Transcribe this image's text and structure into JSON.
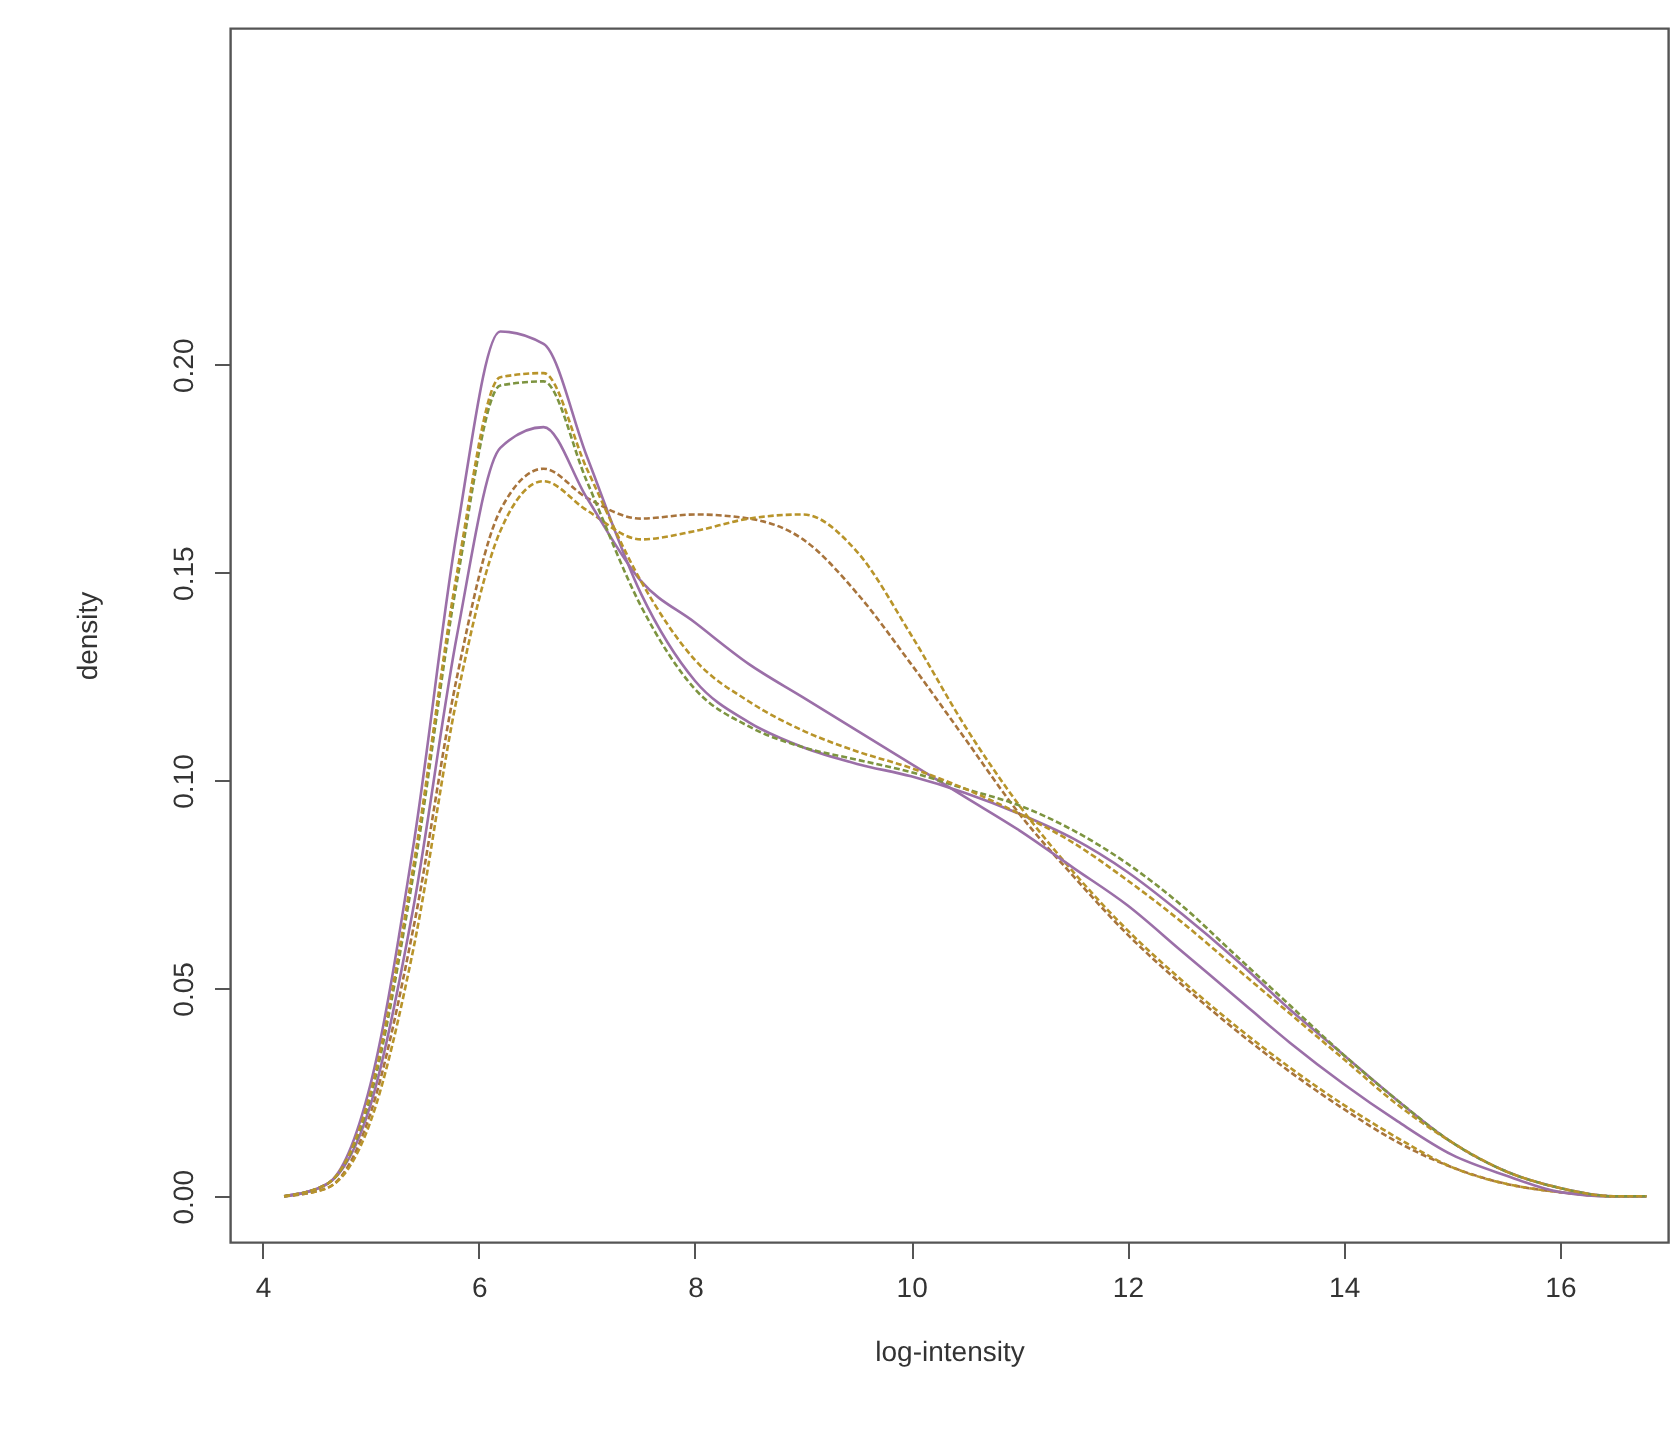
{
  "chart_data": {
    "type": "line",
    "xlabel": "log-intensity",
    "ylabel": "density",
    "x": [
      4.2,
      4.6,
      5.0,
      5.4,
      5.8,
      6.2,
      6.6,
      7.0,
      7.5,
      8,
      8.5,
      9,
      9.5,
      10,
      10.5,
      11,
      11.5,
      12,
      12.5,
      13,
      13.5,
      14,
      14.5,
      15,
      15.5,
      16,
      16.5,
      16.8
    ],
    "series": [
      {
        "color": "#9b6fa8",
        "line_style": "solid",
        "values": [
          0,
          0.003,
          0.027,
          0.085,
          0.16,
          0.208,
          0.205,
          0.178,
          0.145,
          0.124,
          0.114,
          0.108,
          0.104,
          0.101,
          0.097,
          0.092,
          0.086,
          0.078,
          0.068,
          0.057,
          0.045,
          0.034,
          0.023,
          0.013,
          0.006,
          0.002,
          0,
          0
        ]
      },
      {
        "color": "#a8743c",
        "values": [
          0,
          0.002,
          0.02,
          0.065,
          0.125,
          0.165,
          0.175,
          0.168,
          0.163,
          0.164,
          0.163,
          0.158,
          0.145,
          0.128,
          0.11,
          0.092,
          0.077,
          0.063,
          0.051,
          0.04,
          0.03,
          0.021,
          0.013,
          0.007,
          0.003,
          0.001,
          0,
          0
        ]
      },
      {
        "color": "#b8942a",
        "values": [
          0,
          0.002,
          0.018,
          0.06,
          0.12,
          0.16,
          0.172,
          0.165,
          0.158,
          0.16,
          0.163,
          0.164,
          0.155,
          0.135,
          0.113,
          0.094,
          0.078,
          0.064,
          0.052,
          0.041,
          0.031,
          0.022,
          0.014,
          0.007,
          0.003,
          0.001,
          0,
          0
        ]
      },
      {
        "color": "#9b6fa8",
        "line_style": "solid",
        "values": [
          0,
          0.003,
          0.022,
          0.07,
          0.135,
          0.18,
          0.185,
          0.168,
          0.148,
          0.138,
          0.128,
          0.12,
          0.112,
          0.104,
          0.096,
          0.088,
          0.079,
          0.07,
          0.059,
          0.048,
          0.037,
          0.027,
          0.018,
          0.01,
          0.005,
          0.001,
          0,
          0
        ]
      },
      {
        "color": "#7d9440",
        "values": [
          0,
          0.003,
          0.024,
          0.078,
          0.148,
          0.195,
          0.196,
          0.172,
          0.142,
          0.122,
          0.113,
          0.108,
          0.105,
          0.102,
          0.098,
          0.094,
          0.088,
          0.08,
          0.07,
          0.058,
          0.046,
          0.034,
          0.023,
          0.013,
          0.006,
          0.002,
          0,
          0
        ]
      },
      {
        "color": "#b8942a",
        "values": [
          0,
          0.003,
          0.025,
          0.08,
          0.15,
          0.197,
          0.198,
          0.175,
          0.148,
          0.129,
          0.119,
          0.112,
          0.107,
          0.103,
          0.098,
          0.092,
          0.085,
          0.076,
          0.066,
          0.055,
          0.044,
          0.033,
          0.022,
          0.013,
          0.006,
          0.002,
          0,
          0
        ]
      }
    ],
    "xlim": [
      3.7,
      17.0
    ],
    "ylim": [
      -0.011,
      0.281
    ],
    "xticks": [
      4,
      6,
      8,
      10,
      12,
      14,
      16
    ],
    "yticks": [
      {
        "value": 0,
        "label": "0.00"
      },
      {
        "value": 0.05,
        "label": "0.05"
      },
      {
        "value": 0.1,
        "label": "0.10"
      },
      {
        "value": 0.15,
        "label": "0.15"
      },
      {
        "value": 0.2,
        "label": "0.20"
      }
    ],
    "line_style": "dashed",
    "grid": false
  }
}
